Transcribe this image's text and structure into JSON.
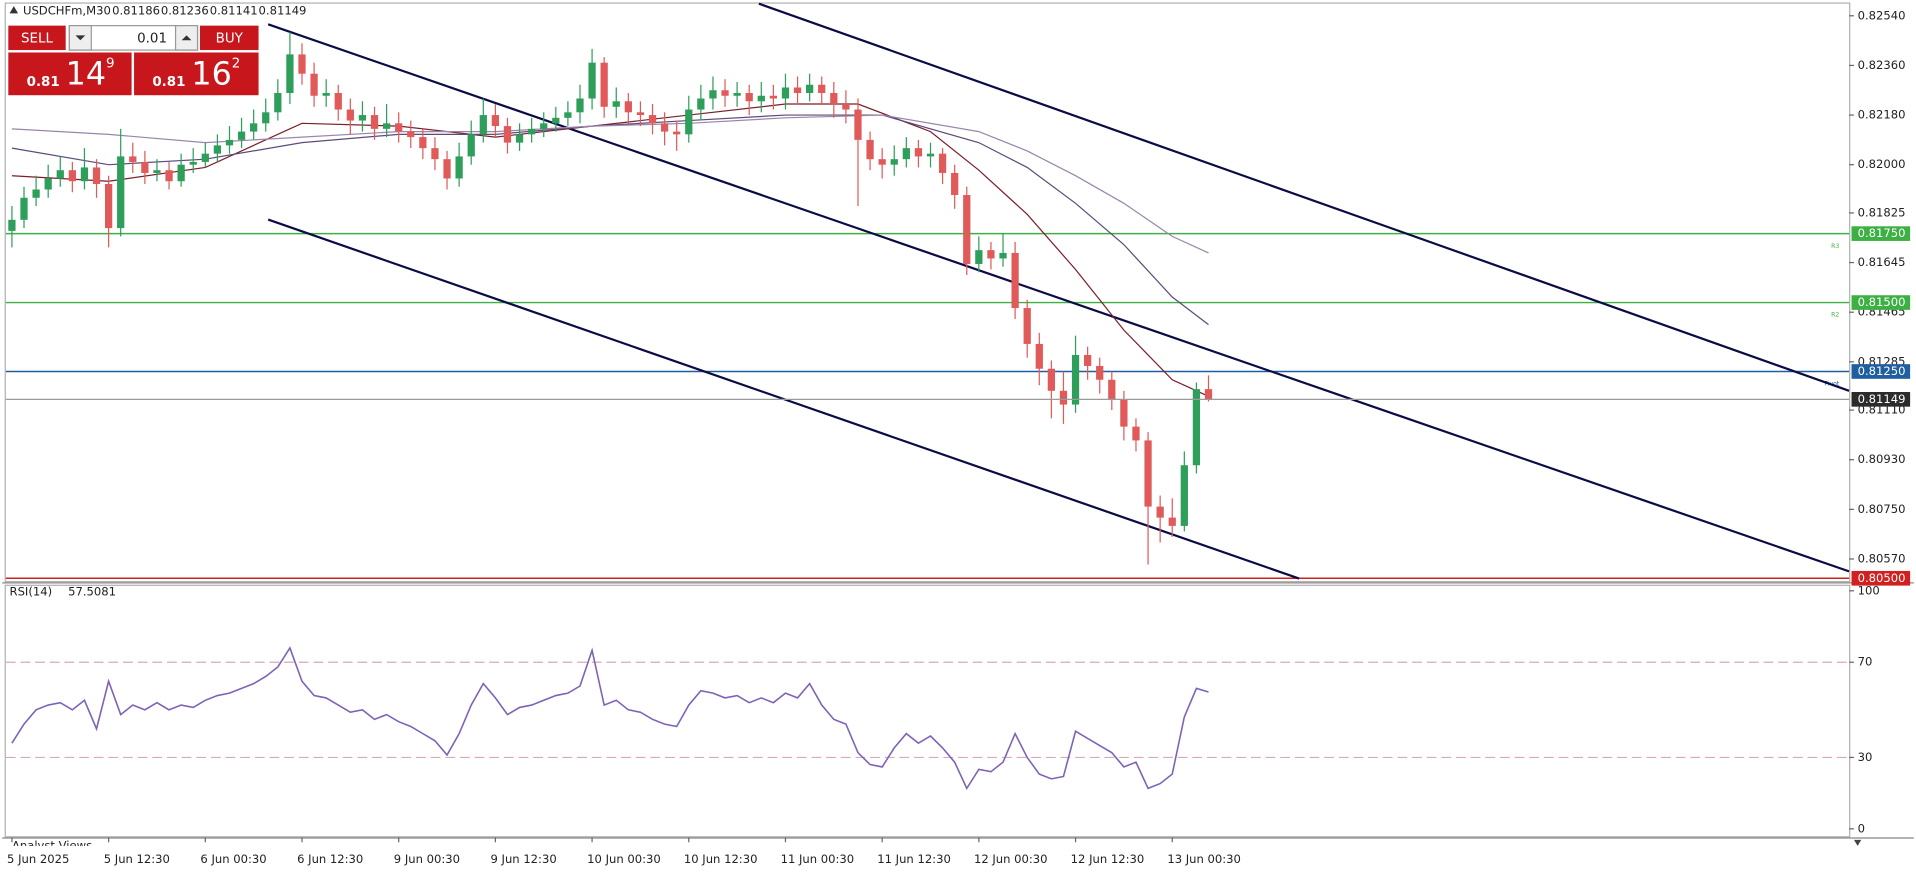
{
  "trade_panel": {
    "sell_label": "SELL",
    "buy_label": "BUY",
    "lot": "0.01",
    "bid": {
      "big": "0.81",
      "pips": "14",
      "point": "9"
    },
    "ask": {
      "big": "0.81",
      "pips": "16",
      "point": "2"
    }
  },
  "footer_tab": "Analyst Views",
  "chart_data": [
    {
      "type": "candlestick",
      "title": "USDCHFm,M30",
      "categories": [
        "5 Jun 2025",
        null,
        null,
        null,
        null,
        null,
        null,
        null,
        "5 Jun 12:30",
        null,
        null,
        null,
        null,
        null,
        null,
        null,
        "6 Jun 00:30",
        null,
        null,
        null,
        null,
        null,
        null,
        null,
        "6 Jun 12:30",
        null,
        null,
        null,
        null,
        null,
        null,
        null,
        "9 Jun 00:30",
        null,
        null,
        null,
        null,
        null,
        null,
        null,
        "9 Jun 12:30",
        null,
        null,
        null,
        null,
        null,
        null,
        null,
        "10 Jun 00:30",
        null,
        null,
        null,
        null,
        null,
        null,
        null,
        "10 Jun 12:30",
        null,
        null,
        null,
        null,
        null,
        null,
        null,
        "11 Jun 00:30",
        null,
        null,
        null,
        null,
        null,
        null,
        null,
        "11 Jun 12:30",
        null,
        null,
        null,
        null,
        null,
        null,
        null,
        "12 Jun 00:30",
        null,
        null,
        null,
        null,
        null,
        null,
        null,
        "12 Jun 12:30",
        null,
        null,
        null,
        null,
        null,
        null,
        null,
        "13 Jun 00:30",
        null,
        null,
        null
      ],
      "open": [
        0.8176,
        0.818,
        0.8188,
        0.8191,
        0.8195,
        0.8198,
        0.8194,
        0.8199,
        0.8193,
        0.8177,
        0.8203,
        0.8201,
        0.8197,
        0.8198,
        0.8194,
        0.82,
        0.8201,
        0.8204,
        0.8207,
        0.8209,
        0.8212,
        0.8215,
        0.8219,
        0.8226,
        0.824,
        0.8233,
        0.8225,
        0.8226,
        0.822,
        0.8216,
        0.8218,
        0.8213,
        0.8215,
        0.8212,
        0.821,
        0.8206,
        0.8202,
        0.8195,
        0.8203,
        0.8211,
        0.8218,
        0.8214,
        0.8208,
        0.8211,
        0.8213,
        0.8215,
        0.8217,
        0.8219,
        0.8224,
        0.8237,
        0.8221,
        0.8223,
        0.8219,
        0.8218,
        0.8215,
        0.8212,
        0.8211,
        0.822,
        0.8224,
        0.8227,
        0.8225,
        0.8226,
        0.8223,
        0.8225,
        0.8224,
        0.8228,
        0.8226,
        0.8229,
        0.8226,
        0.8222,
        0.822,
        0.8209,
        0.8202,
        0.82,
        0.8202,
        0.8206,
        0.8203,
        0.8204,
        0.8197,
        0.8189,
        0.8164,
        0.8169,
        0.8166,
        0.8168,
        0.8148,
        0.8135,
        0.8126,
        0.8118,
        0.8113,
        0.8131,
        0.8127,
        0.8122,
        0.8115,
        0.8105,
        0.81,
        0.8076,
        0.8072,
        0.8069,
        0.8091,
        0.81186
      ],
      "high": [
        0.8185,
        0.8192,
        0.8196,
        0.82,
        0.8203,
        0.8201,
        0.8206,
        0.8202,
        0.8196,
        0.8213,
        0.8208,
        0.8205,
        0.8202,
        0.8201,
        0.8204,
        0.8206,
        0.8208,
        0.8211,
        0.8214,
        0.8217,
        0.822,
        0.8224,
        0.8231,
        0.8248,
        0.8244,
        0.8237,
        0.8231,
        0.8229,
        0.8224,
        0.8223,
        0.8221,
        0.8222,
        0.8219,
        0.8216,
        0.8213,
        0.821,
        0.8205,
        0.8208,
        0.8216,
        0.8224,
        0.8222,
        0.8217,
        0.8215,
        0.8217,
        0.8219,
        0.8221,
        0.8223,
        0.8229,
        0.8242,
        0.8239,
        0.8228,
        0.8226,
        0.8223,
        0.8222,
        0.8219,
        0.8216,
        0.8225,
        0.8229,
        0.8232,
        0.8231,
        0.823,
        0.8229,
        0.823,
        0.8229,
        0.8233,
        0.8232,
        0.8233,
        0.8232,
        0.823,
        0.8227,
        0.8224,
        0.8212,
        0.8206,
        0.8207,
        0.821,
        0.8209,
        0.8208,
        0.8206,
        0.82,
        0.8192,
        0.8174,
        0.8172,
        0.8175,
        0.8172,
        0.8151,
        0.8139,
        0.8129,
        0.8125,
        0.8138,
        0.8134,
        0.813,
        0.8125,
        0.8118,
        0.8108,
        0.8103,
        0.808,
        0.8079,
        0.8096,
        0.8121,
        0.81236
      ],
      "low": [
        0.817,
        0.8177,
        0.8185,
        0.8188,
        0.8192,
        0.819,
        0.8191,
        0.8188,
        0.817,
        0.8174,
        0.8197,
        0.8193,
        0.8194,
        0.8191,
        0.8192,
        0.8197,
        0.8199,
        0.8201,
        0.8204,
        0.8206,
        0.8209,
        0.8212,
        0.8216,
        0.8222,
        0.8229,
        0.8221,
        0.8221,
        0.8216,
        0.8211,
        0.8212,
        0.8209,
        0.821,
        0.8208,
        0.8206,
        0.8202,
        0.8198,
        0.8191,
        0.8192,
        0.82,
        0.8208,
        0.821,
        0.8204,
        0.8205,
        0.8208,
        0.821,
        0.8212,
        0.8214,
        0.8215,
        0.822,
        0.8217,
        0.8217,
        0.8215,
        0.8214,
        0.8211,
        0.8207,
        0.8205,
        0.8208,
        0.8216,
        0.822,
        0.8221,
        0.8221,
        0.8218,
        0.8219,
        0.822,
        0.822,
        0.8222,
        0.8223,
        0.8222,
        0.8217,
        0.8215,
        0.8185,
        0.8198,
        0.8195,
        0.8196,
        0.8199,
        0.8199,
        0.8199,
        0.8193,
        0.8184,
        0.816,
        0.8161,
        0.8162,
        0.8163,
        0.8144,
        0.813,
        0.812,
        0.8108,
        0.8106,
        0.811,
        0.8122,
        0.8117,
        0.8111,
        0.81,
        0.8096,
        0.8055,
        0.8063,
        0.8065,
        0.8067,
        0.8088,
        0.81141
      ],
      "close": [
        0.818,
        0.8188,
        0.8191,
        0.8195,
        0.8198,
        0.8194,
        0.8199,
        0.8193,
        0.8177,
        0.8203,
        0.8201,
        0.8197,
        0.8198,
        0.8194,
        0.82,
        0.8201,
        0.8204,
        0.8207,
        0.8209,
        0.8212,
        0.8215,
        0.8219,
        0.8226,
        0.824,
        0.8233,
        0.8225,
        0.8226,
        0.822,
        0.8216,
        0.8218,
        0.8213,
        0.8215,
        0.8212,
        0.821,
        0.8206,
        0.8202,
        0.8195,
        0.8203,
        0.8211,
        0.8218,
        0.8214,
        0.8208,
        0.8211,
        0.8213,
        0.8215,
        0.8217,
        0.8219,
        0.8224,
        0.8237,
        0.8221,
        0.8223,
        0.8219,
        0.8218,
        0.8215,
        0.8212,
        0.8211,
        0.822,
        0.8224,
        0.8227,
        0.8225,
        0.8226,
        0.8223,
        0.8225,
        0.8224,
        0.8228,
        0.8226,
        0.8229,
        0.8226,
        0.8222,
        0.822,
        0.8209,
        0.8202,
        0.82,
        0.8202,
        0.8206,
        0.8203,
        0.8204,
        0.8197,
        0.8189,
        0.8164,
        0.8169,
        0.8166,
        0.8168,
        0.8148,
        0.8135,
        0.8126,
        0.8118,
        0.8113,
        0.8131,
        0.8127,
        0.8122,
        0.8115,
        0.8105,
        0.81,
        0.8076,
        0.8072,
        0.8069,
        0.8091,
        0.81186,
        0.81149
      ],
      "up_color": "#2e9e5b",
      "down_color": "#e05a5a",
      "xlim": [
        -0.5,
        152
      ],
      "ylim": [
        0.8049,
        0.82584
      ],
      "yticks": [
        {
          "value": 0.8254,
          "label": "0.82540"
        },
        {
          "value": 0.8236,
          "label": "0.82360"
        },
        {
          "value": 0.8218,
          "label": "0.82180"
        },
        {
          "value": 0.82,
          "label": "0.82000"
        },
        {
          "value": 0.81825,
          "label": "0.81825"
        },
        {
          "value": 0.81645,
          "label": "0.81645"
        },
        {
          "value": 0.81465,
          "label": "0.81465"
        },
        {
          "value": 0.81285,
          "label": "0.81285"
        },
        {
          "value": 0.8111,
          "label": "0.81110"
        },
        {
          "value": 0.8093,
          "label": "0.80930"
        },
        {
          "value": 0.8075,
          "label": "0.80750"
        },
        {
          "value": 0.8057,
          "label": "0.80570"
        }
      ],
      "series": [
        {
          "color": "#7a1f2b",
          "x": [
            0,
            8,
            16,
            24,
            32,
            40,
            48,
            56,
            64,
            70,
            76,
            80,
            84,
            88,
            92,
            96,
            99
          ],
          "values": [
            0.8196,
            0.8194,
            0.8199,
            0.8215,
            0.8214,
            0.821,
            0.8214,
            0.8218,
            0.8222,
            0.8222,
            0.8212,
            0.8198,
            0.8182,
            0.8162,
            0.814,
            0.8122,
            0.8116
          ]
        },
        {
          "color": "#5c4a78",
          "x": [
            0,
            8,
            16,
            24,
            32,
            40,
            48,
            56,
            64,
            72,
            80,
            84,
            88,
            92,
            96,
            99
          ],
          "values": [
            0.8206,
            0.82,
            0.8202,
            0.8208,
            0.8211,
            0.8211,
            0.8214,
            0.8216,
            0.8218,
            0.8218,
            0.8208,
            0.8199,
            0.8186,
            0.8171,
            0.8152,
            0.8142
          ]
        },
        {
          "color": "#9a86a8",
          "x": [
            0,
            8,
            16,
            24,
            32,
            40,
            48,
            56,
            64,
            72,
            80,
            84,
            88,
            92,
            96,
            99
          ],
          "values": [
            0.8213,
            0.8211,
            0.8208,
            0.821,
            0.8212,
            0.8212,
            0.8214,
            0.8215,
            0.8217,
            0.8218,
            0.8212,
            0.8205,
            0.8196,
            0.8186,
            0.8174,
            0.8168
          ]
        }
      ],
      "levels": [
        {
          "value": 0.8175,
          "label": "0.81750",
          "name": "R3",
          "color": "#3cb043"
        },
        {
          "value": 0.815,
          "label": "0.81500",
          "name": "R2",
          "color": "#3cb043"
        },
        {
          "value": 0.8125,
          "label": "0.81250",
          "name": "Pivot",
          "color": "#1f5fa0"
        },
        {
          "value": 0.805,
          "label": "0.80500",
          "color": "#d02020"
        }
      ],
      "trendlines": [
        {
          "x": [
            61.8,
            152
          ],
          "y": [
            0.82584,
            0.8118
          ]
        },
        {
          "x": [
            21.2,
            152
          ],
          "y": [
            0.82509,
            0.80525
          ]
        },
        {
          "x": [
            21.2,
            106.5
          ],
          "y": [
            0.81801,
            0.80499
          ]
        }
      ],
      "trendline_color": "#0b0b45",
      "price_line_color": "#9a9a9a"
    },
    {
      "type": "line",
      "name": "RSI(14)",
      "color": "#7d62b8",
      "values": [
        36,
        44,
        50,
        52,
        53,
        50,
        54,
        42,
        62,
        48,
        52,
        50,
        53,
        50,
        52,
        51,
        54,
        56,
        57,
        59,
        61,
        64,
        68,
        76,
        62,
        56,
        55,
        52,
        49,
        50,
        46,
        48,
        45,
        43,
        40,
        37,
        31,
        40,
        52,
        61,
        55,
        48,
        51,
        52,
        54,
        56,
        57,
        60,
        75,
        52,
        54,
        50,
        49,
        46,
        44,
        43,
        52,
        58,
        57,
        55,
        56,
        53,
        55,
        53,
        57,
        55,
        61,
        52,
        46,
        44,
        32,
        27,
        26,
        34,
        40,
        36,
        39,
        34,
        28,
        17,
        25,
        24,
        28,
        40,
        30,
        23,
        21,
        22,
        41,
        38,
        35,
        32,
        26,
        28,
        17,
        19,
        23,
        47,
        59,
        57.5081
      ],
      "ylim": [
        0,
        100
      ],
      "yticks": [
        0,
        30,
        70,
        100
      ],
      "levels": [
        30,
        70
      ],
      "level_color": "#d7a9bd"
    }
  ]
}
